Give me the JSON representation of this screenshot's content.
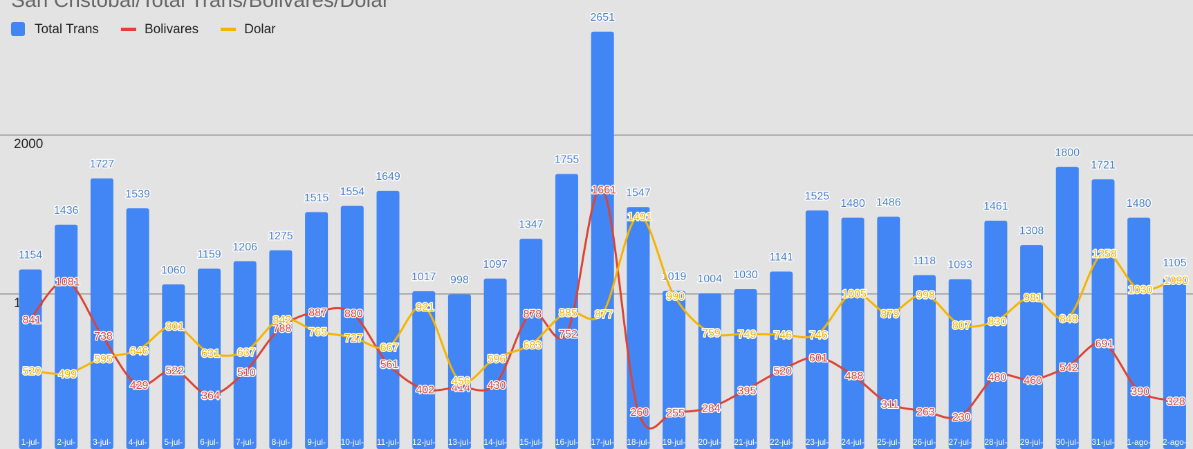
{
  "chart_data": {
    "type": "bar-line",
    "title": "San Cristobal/Total Trans/Bolivares/Dolar",
    "categories": [
      "1-jul-",
      "2-jul-",
      "3-jul-",
      "4-jul-",
      "5-jul-",
      "6-jul-",
      "7-jul-",
      "8-jul-",
      "9-jul-",
      "10-jul-",
      "11-jul-",
      "12-jul-",
      "13-jul-",
      "14-jul-",
      "15-jul-",
      "16-jul-",
      "17-jul-",
      "18-jul-",
      "19-jul-",
      "20-jul-",
      "21-jul-",
      "22-jul-",
      "23-jul-",
      "24-jul-",
      "25-jul-",
      "26-jul-",
      "27-jul-",
      "28-jul-",
      "29-jul-",
      "30-jul-",
      "31-jul-",
      "1-ago-",
      "2-ago-"
    ],
    "series": [
      {
        "name": "Total Trans",
        "color": "#4285f4",
        "kind": "bar",
        "values": [
          1154,
          1436,
          1727,
          1539,
          1060,
          1159,
          1206,
          1275,
          1515,
          1554,
          1649,
          1017,
          998,
          1097,
          1347,
          1755,
          2651,
          1547,
          1019,
          1004,
          1030,
          1141,
          1525,
          1480,
          1486,
          1118,
          1093,
          1461,
          1308,
          1800,
          1721,
          1480,
          1105
        ]
      },
      {
        "name": "Bolivares",
        "color": "#db4437",
        "kind": "line",
        "values": [
          841,
          1081,
          738,
          429,
          522,
          364,
          510,
          788,
          887,
          880,
          561,
          402,
          414,
          430,
          878,
          752,
          1661,
          260,
          255,
          284,
          395,
          520,
          601,
          488,
          311,
          263,
          230,
          480,
          460,
          542,
          691,
          390,
          328
        ]
      },
      {
        "name": "Dolar",
        "color": "#f4b400",
        "kind": "line",
        "values": [
          520,
          499,
          595,
          646,
          801,
          631,
          637,
          842,
          765,
          727,
          667,
          921,
          456,
          596,
          683,
          885,
          877,
          1491,
          990,
          759,
          749,
          746,
          746,
          1005,
          879,
          998,
          807,
          830,
          981,
          848,
          1258,
          1030,
          1090
        ]
      }
    ],
    "ylim": [
      24,
      2850
    ],
    "yticks": [
      1000,
      2000
    ],
    "grid": true,
    "legend": "top-left"
  }
}
